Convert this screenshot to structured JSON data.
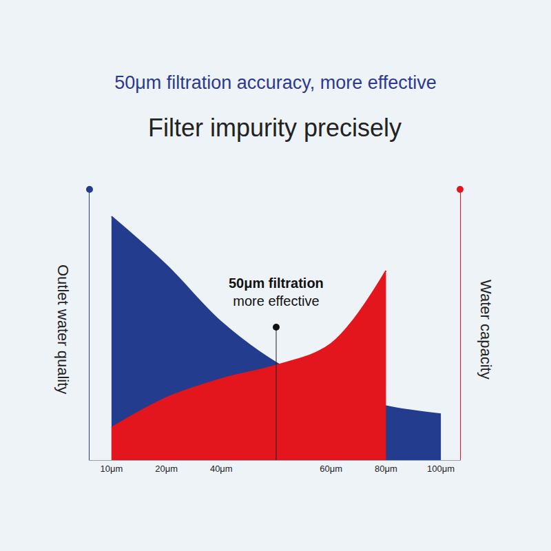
{
  "chart_data": {
    "type": "area",
    "title": "50μm filtration accuracy, more effective",
    "subtitle": "Filter impurity precisely",
    "ylabel": "Outlet water quality",
    "y2label": "Water capacity",
    "categories": [
      "10μm",
      "20μm",
      "40μm",
      null,
      "60μm",
      "80μm",
      "100μm"
    ],
    "series": [
      {
        "color": "#233c8e",
        "values": [
          90,
          72,
          51,
          36,
          26,
          20,
          17
        ]
      },
      {
        "color": "#e3161e",
        "values": [
          12,
          23,
          30,
          35,
          43,
          70,
          null
        ],
        "axis": "y2"
      }
    ],
    "ylim": [
      0,
      100
    ],
    "y2lim": [
      0,
      100
    ],
    "tick_labels": "x",
    "annotation": {
      "title": "50μm filtration",
      "text": "more effective",
      "index": 3
    }
  }
}
